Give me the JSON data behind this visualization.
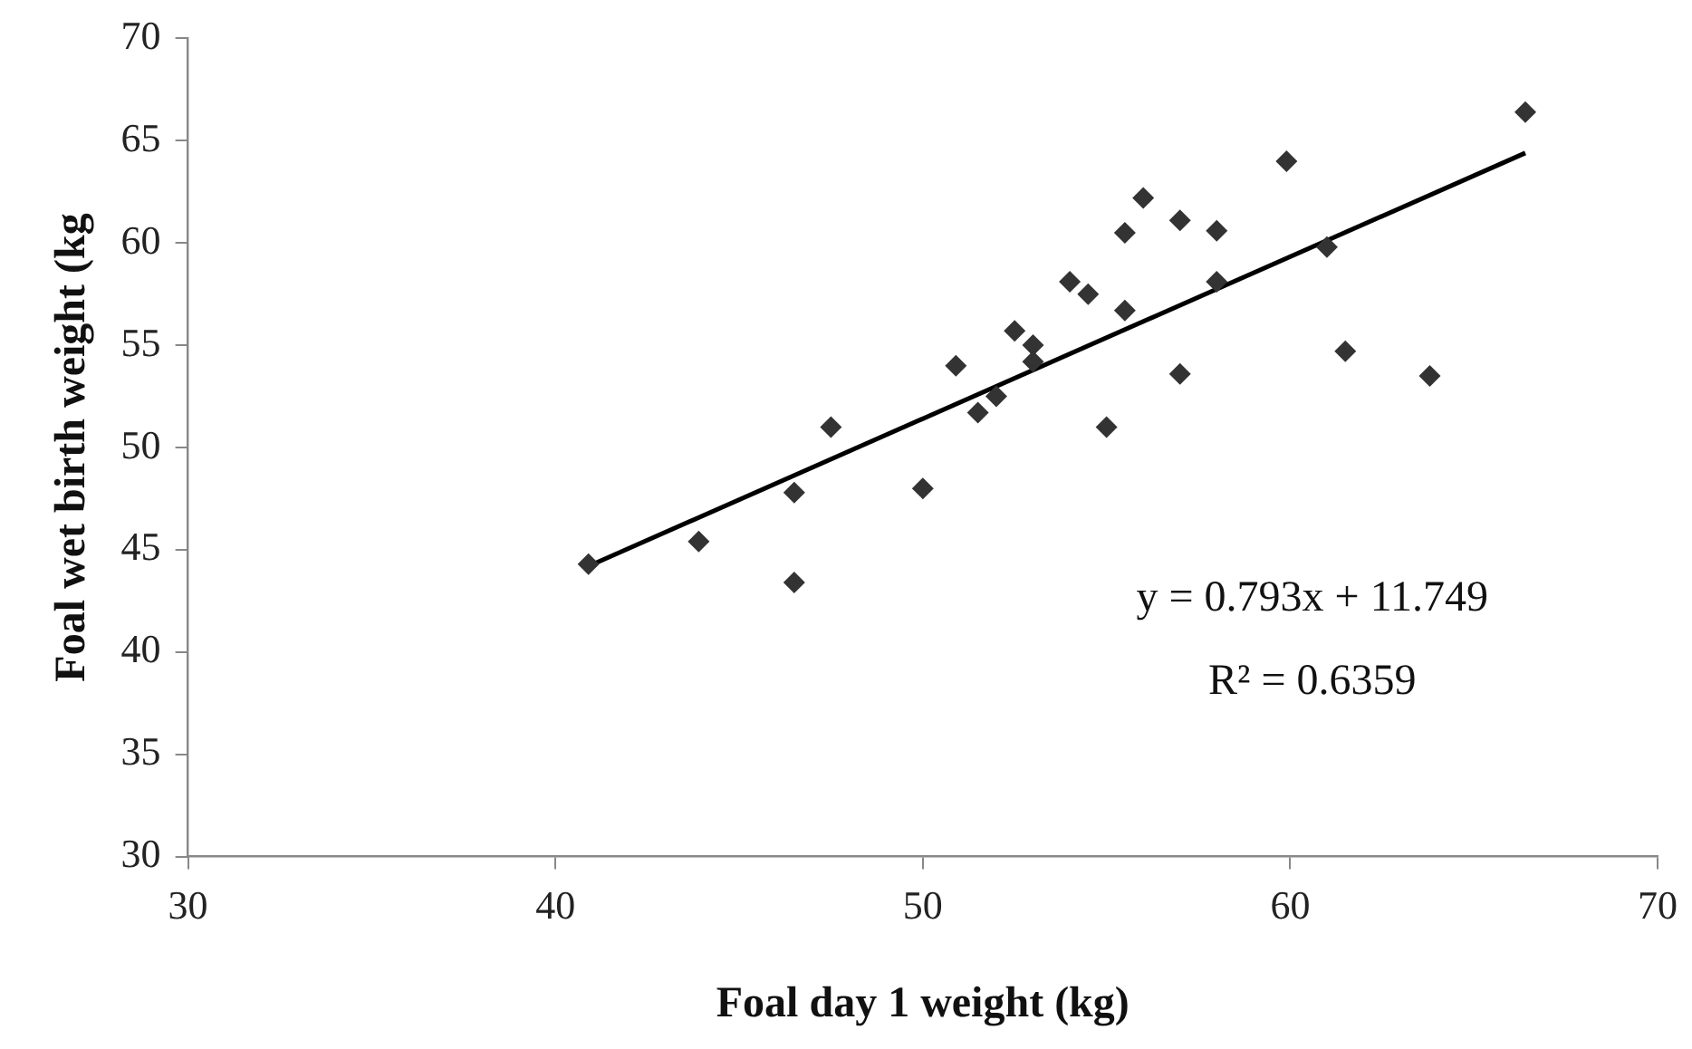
{
  "chart_data": {
    "type": "scatter",
    "xlabel": "Foal day 1 weight (kg)",
    "ylabel": "Foal wet birth weight (kg",
    "xlim": [
      30,
      70
    ],
    "xticks": [
      30,
      40,
      50,
      60,
      70
    ],
    "ylim": [
      30,
      70
    ],
    "yticks": [
      30,
      35,
      40,
      45,
      50,
      55,
      60,
      65,
      70
    ],
    "grid": false,
    "legend": false,
    "marker": "diamond",
    "annotations": [
      "y = 0.793x + 11.749",
      "R² = 0.6359"
    ],
    "series": [
      {
        "color": "#333333",
        "x": [
          40.9,
          43.9,
          46.5,
          46.5,
          47.5,
          50.0,
          50.9,
          51.5,
          52.0,
          52.5,
          53.0,
          53.0,
          54.0,
          54.5,
          55.0,
          55.5,
          56.0,
          55.5,
          57.0,
          58.0,
          58.0,
          57.0,
          59.9,
          61.0,
          61.5,
          63.8,
          66.4
        ],
        "values": [
          44.3,
          45.4,
          47.8,
          43.4,
          51.0,
          48.0,
          54.0,
          51.7,
          52.5,
          55.7,
          55.0,
          54.2,
          58.1,
          57.5,
          51.0,
          60.5,
          62.2,
          56.7,
          61.1,
          60.6,
          58.1,
          53.6,
          64.0,
          59.8,
          54.7,
          53.5,
          66.4
        ]
      },
      {
        "type": "line",
        "color": "#000000",
        "x": [
          40.9,
          66.4
        ],
        "values": [
          44.2,
          64.4
        ],
        "marker": "none",
        "line_style": "solid"
      }
    ]
  }
}
